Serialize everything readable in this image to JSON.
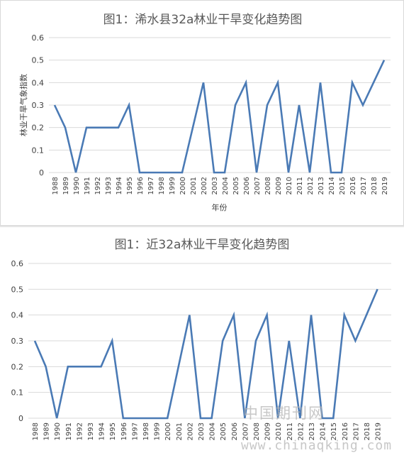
{
  "chart_data": [
    {
      "type": "line",
      "title": "图1：浠水县32a林业干旱变化趋势图",
      "xlabel": "年份",
      "ylabel": "林业干旱气象指数",
      "ylim": [
        0,
        0.6
      ],
      "yticks": [
        "0",
        "0.1",
        "0.2",
        "0.3",
        "0.4",
        "0.5",
        "0.6"
      ],
      "grid": true,
      "legend": "none",
      "x": [
        "1988",
        "1989",
        "1990",
        "1991",
        "1992",
        "1993",
        "1994",
        "1995",
        "1996",
        "1997",
        "1998",
        "1999",
        "2000",
        "2001",
        "2002",
        "2003",
        "2004",
        "2005",
        "2006",
        "2007",
        "2008",
        "2009",
        "2010",
        "2011",
        "2012",
        "2013",
        "2014",
        "2015",
        "2016",
        "2017",
        "2018",
        "2019"
      ],
      "series": [
        {
          "values": [
            0.3,
            0.2,
            0,
            0.2,
            0.2,
            0.2,
            0.2,
            0.3,
            0,
            0,
            0,
            0,
            0,
            0.2,
            0.4,
            0,
            0,
            0.3,
            0.4,
            0,
            0.3,
            0.4,
            0,
            0.3,
            0,
            0.4,
            0,
            0,
            0.4,
            0.3,
            0.4,
            0.5
          ],
          "color": "#4a7ab5"
        }
      ]
    },
    {
      "type": "line",
      "title": "图1：近32a林业干旱变化趋势图",
      "xlabel": "",
      "ylabel": "",
      "ylim": [
        0,
        0.6
      ],
      "yticks": [
        "0",
        "0.1",
        "0.2",
        "0.3",
        "0.4",
        "0.5",
        "0.6"
      ],
      "grid": true,
      "legend": "none",
      "x": [
        "1988",
        "1989",
        "1990",
        "1991",
        "1992",
        "1993",
        "1994",
        "1995",
        "1996",
        "1997",
        "1998",
        "1999",
        "2000",
        "2001",
        "2002",
        "2003",
        "2004",
        "2005",
        "2006",
        "2007",
        "2008",
        "2009",
        "2010",
        "2011",
        "2012",
        "2013",
        "2014",
        "2015",
        "2016",
        "2017",
        "2018",
        "2019"
      ],
      "series": [
        {
          "values": [
            0.3,
            0.2,
            0,
            0.2,
            0.2,
            0.2,
            0.2,
            0.3,
            0,
            0,
            0,
            0,
            0,
            0.2,
            0.4,
            0,
            0,
            0.3,
            0.4,
            0,
            0.3,
            0.4,
            0,
            0.3,
            0,
            0.4,
            0,
            0,
            0.4,
            0.3,
            0.4,
            0.5
          ],
          "color": "#4a7ab5"
        }
      ]
    }
  ],
  "watermark": {
    "name_text": "中国期刊网",
    "url_text": "www.chinaqking.com"
  },
  "colors": {
    "line": "#4a7ab5",
    "grid": "#d9d9d9",
    "tick_text": "#404040",
    "title_text": "#595959"
  }
}
